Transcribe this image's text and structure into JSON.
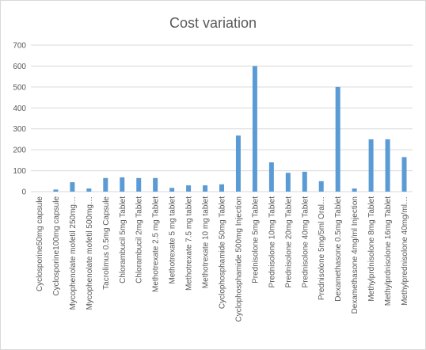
{
  "chart_data": {
    "type": "bar",
    "title": "Cost variation",
    "xlabel": "",
    "ylabel": "",
    "ylim": [
      0,
      700
    ],
    "yticks": [
      0,
      100,
      200,
      300,
      400,
      500,
      600,
      700
    ],
    "grid": true,
    "legend": "none",
    "bar_color": "#5b9bd5",
    "categories": [
      "Cyclosporine50mg capsule",
      "Cyclosporine100mg capsule",
      "Mycophenolate mofetil 250mg…",
      "Mycophenolate mofetil 500mg…",
      "Tacrolimus 0.5mg Capsule",
      "Chlorambucil 5mg Tablet",
      "Chlorambucil 2mg Tablet",
      "Methotrexate 2.5 mg Tablet",
      "Methotrexate 5 mg tablet",
      "Methotrexate 7.5 mg tablet",
      "Methotrexate 10 mg tablet",
      "Cyclophosphamide 50mg Tablet",
      "Cyclophosphamide 500mg Injection",
      "Prednisolone 5mg Tablet",
      "Prednisolone 10mg Tablet",
      "Prednisolone 20mg Tablet",
      "Prednisolone 40mg Tablet",
      "Prednisolone 5mg/5ml Oral…",
      "Dexamethasone 0.5mg Tablet",
      "Dexamethasone 4mg/ml Injection",
      "Methylprdnisolone 8mg Tablet",
      "Methylprdnisolone 16mg Tablet",
      "Methylprednisolone 40mg/ml…"
    ],
    "values": [
      0,
      10,
      45,
      15,
      65,
      68,
      65,
      65,
      18,
      30,
      30,
      35,
      268,
      600,
      140,
      90,
      95,
      50,
      500,
      15,
      250,
      250,
      165
    ]
  }
}
